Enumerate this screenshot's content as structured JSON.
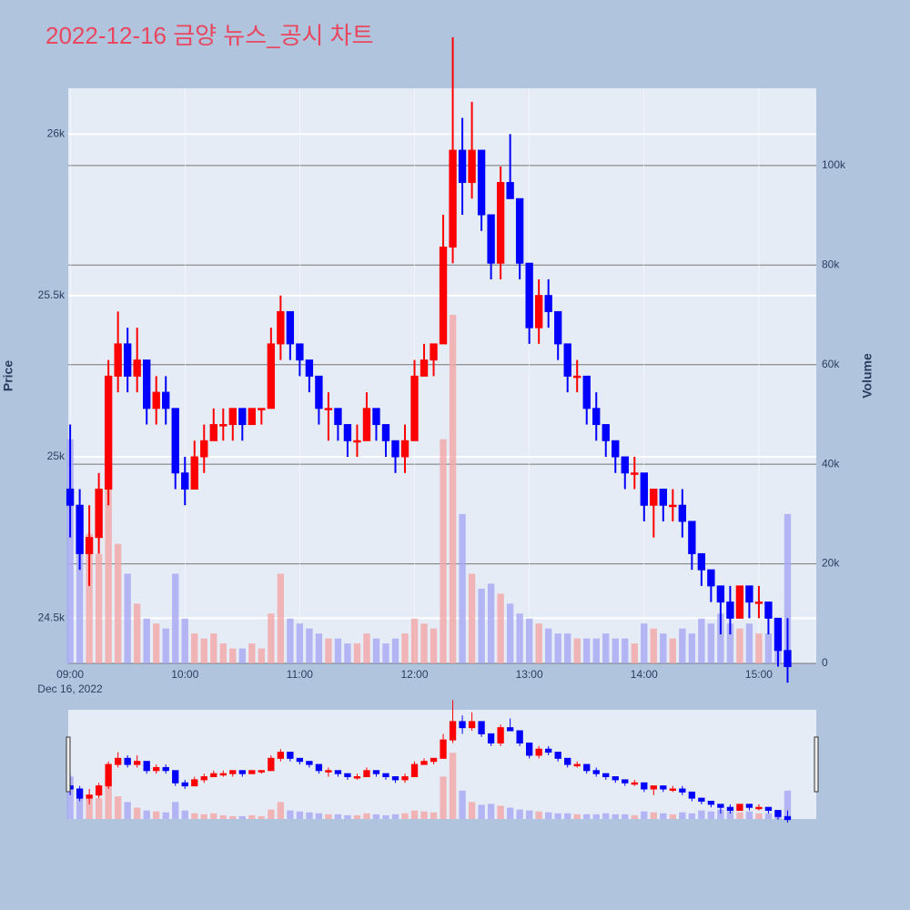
{
  "chart_data": {
    "type": "candlestick",
    "title": "2022-12-16 금양 뉴스_공시 차트",
    "y_label": "Price",
    "y2_label": "Volume",
    "x_date": "Dec 16, 2022",
    "increasing_color": "#ff0000",
    "decreasing_color": "#0000ff",
    "volume_up_color": "#f4a6a6",
    "volume_down_color": "#a6a6f4",
    "xlim": [
      "08:59",
      "15:30"
    ],
    "xticks": [
      "09:00",
      "10:00",
      "11:00",
      "12:00",
      "13:00",
      "14:00",
      "15:00"
    ],
    "ylim": [
      24360,
      26142
    ],
    "yticks": [
      {
        "value": 24500,
        "label": "24.5k"
      },
      {
        "value": 25000,
        "label": "25k"
      },
      {
        "value": 25500,
        "label": "25.5k"
      },
      {
        "value": 26000,
        "label": "26k"
      }
    ],
    "y2lim": [
      0,
      115500
    ],
    "y2ticks": [
      0,
      {
        "value": 20000,
        "label": "20k"
      },
      {
        "value": 40000,
        "label": "40k"
      },
      {
        "value": 60000,
        "label": "60k"
      },
      {
        "value": 80000,
        "label": "80k"
      },
      {
        "value": 100000,
        "label": "100k"
      }
    ],
    "rangeslider": true,
    "x": [
      "09:00",
      "09:05",
      "09:10",
      "09:15",
      "09:20",
      "09:25",
      "09:30",
      "09:35",
      "09:40",
      "09:45",
      "09:50",
      "09:55",
      "10:00",
      "10:05",
      "10:10",
      "10:15",
      "10:20",
      "10:25",
      "10:30",
      "10:35",
      "10:40",
      "10:45",
      "10:50",
      "10:55",
      "11:00",
      "11:05",
      "11:10",
      "11:15",
      "11:20",
      "11:25",
      "11:30",
      "11:35",
      "11:40",
      "11:45",
      "11:50",
      "11:55",
      "12:00",
      "12:05",
      "12:10",
      "12:15",
      "12:20",
      "12:25",
      "12:30",
      "12:35",
      "12:40",
      "12:45",
      "12:50",
      "12:55",
      "13:00",
      "13:05",
      "13:10",
      "13:15",
      "13:20",
      "13:25",
      "13:30",
      "13:35",
      "13:40",
      "13:45",
      "13:50",
      "13:55",
      "14:00",
      "14:05",
      "14:10",
      "14:15",
      "14:20",
      "14:25",
      "14:30",
      "14:35",
      "14:40",
      "14:45",
      "14:50",
      "14:55",
      "15:00",
      "15:05",
      "15:10",
      "15:15"
    ],
    "open": [
      24900,
      24850,
      24700,
      24750,
      24900,
      25250,
      25350,
      25250,
      25300,
      25150,
      25200,
      25150,
      24950,
      24900,
      25000,
      25050,
      25100,
      25100,
      25150,
      25100,
      25150,
      25150,
      25350,
      25450,
      25350,
      25300,
      25250,
      25150,
      25150,
      25100,
      25050,
      25050,
      25150,
      25100,
      25050,
      25000,
      25050,
      25250,
      25300,
      25350,
      25650,
      25950,
      25850,
      25950,
      25750,
      25600,
      25850,
      25800,
      25600,
      25400,
      25500,
      25450,
      25350,
      25250,
      25250,
      25150,
      25100,
      25050,
      25000,
      24950,
      24950,
      24850,
      24900,
      24850,
      24850,
      24800,
      24700,
      24650,
      24600,
      24550,
      24500,
      24600,
      24550,
      24550,
      24500,
      24400
    ],
    "high": [
      25100,
      24900,
      24850,
      24950,
      25300,
      25450,
      25400,
      25400,
      25300,
      25250,
      25250,
      25150,
      25000,
      25050,
      25100,
      25150,
      25150,
      25150,
      25150,
      25150,
      25150,
      25400,
      25500,
      25450,
      25350,
      25300,
      25250,
      25200,
      25150,
      25100,
      25100,
      25200,
      25150,
      25100,
      25050,
      25100,
      25300,
      25350,
      25350,
      25750,
      26300,
      26050,
      26100,
      25950,
      25750,
      25900,
      26000,
      25800,
      25600,
      25550,
      25550,
      25450,
      25350,
      25300,
      25250,
      25200,
      25100,
      25050,
      25000,
      25000,
      24950,
      24900,
      24900,
      24900,
      24900,
      24800,
      24700,
      24650,
      24600,
      24600,
      24600,
      24600,
      24600,
      24550,
      24500,
      24500
    ],
    "low": [
      24750,
      24650,
      24600,
      24700,
      24850,
      25200,
      25200,
      25200,
      25100,
      25100,
      25100,
      24900,
      24850,
      24900,
      24950,
      25050,
      25050,
      25050,
      25050,
      25100,
      25100,
      25150,
      25300,
      25300,
      25250,
      25200,
      25100,
      25050,
      25050,
      25000,
      25000,
      25050,
      25050,
      25000,
      24950,
      24950,
      25050,
      25250,
      25250,
      25350,
      25600,
      25750,
      25800,
      25700,
      25550,
      25550,
      25800,
      25550,
      25350,
      25350,
      25400,
      25300,
      25200,
      25200,
      25100,
      25050,
      25000,
      24950,
      24900,
      24900,
      24800,
      24750,
      24800,
      24800,
      24750,
      24650,
      24600,
      24550,
      24450,
      24450,
      24500,
      24500,
      24500,
      24450,
      24350,
      24300
    ],
    "close": [
      24850,
      24700,
      24750,
      24900,
      25250,
      25350,
      25250,
      25300,
      25150,
      25200,
      25150,
      24950,
      24900,
      25000,
      25050,
      25100,
      25100,
      25150,
      25100,
      25150,
      25150,
      25350,
      25450,
      25350,
      25300,
      25250,
      25150,
      25150,
      25100,
      25050,
      25050,
      25150,
      25100,
      25050,
      25000,
      25050,
      25250,
      25300,
      25350,
      25650,
      25950,
      25850,
      25950,
      25750,
      25600,
      25850,
      25800,
      25600,
      25400,
      25500,
      25450,
      25350,
      25250,
      25250,
      25150,
      25100,
      25050,
      25000,
      24950,
      24950,
      24850,
      24900,
      24850,
      24850,
      24800,
      24700,
      24650,
      24600,
      24550,
      24500,
      24600,
      24550,
      24550,
      24500,
      24400,
      24350
    ],
    "volume": [
      45000,
      30000,
      26000,
      22000,
      38000,
      24000,
      18000,
      12000,
      9000,
      8000,
      7000,
      18000,
      9000,
      6000,
      5000,
      6000,
      4000,
      3000,
      3000,
      4000,
      3000,
      10000,
      18000,
      9000,
      8000,
      7000,
      6000,
      5000,
      5000,
      4000,
      4000,
      6000,
      5000,
      4000,
      5000,
      6000,
      9000,
      8000,
      7000,
      45000,
      70000,
      30000,
      18000,
      15000,
      16000,
      14000,
      12000,
      10000,
      9000,
      8000,
      7000,
      6000,
      6000,
      5000,
      5000,
      5000,
      6000,
      5000,
      5000,
      4000,
      8000,
      7000,
      6000,
      5000,
      7000,
      6000,
      9000,
      8000,
      10000,
      8000,
      7000,
      8000,
      6000,
      6000,
      8000,
      30000
    ]
  }
}
